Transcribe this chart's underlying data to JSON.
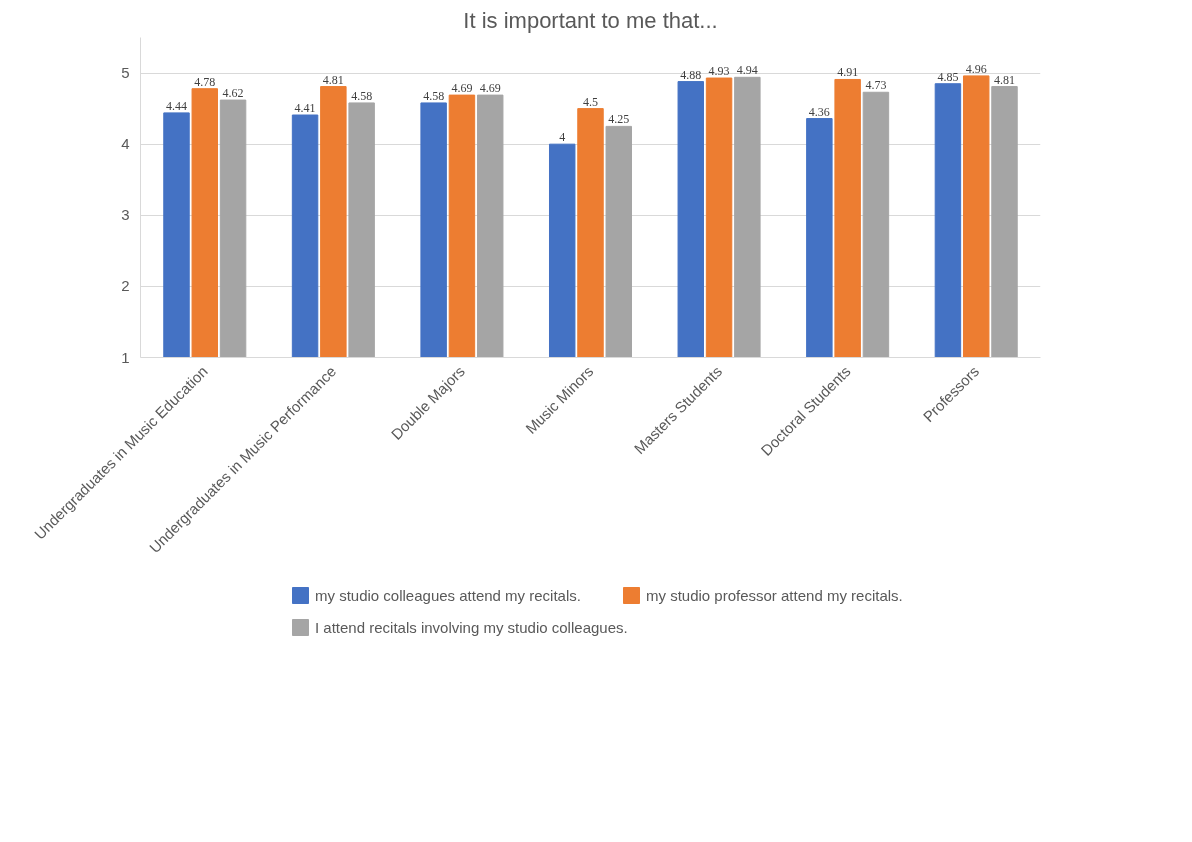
{
  "chart_data": {
    "type": "bar",
    "title": "It is important to me that...",
    "categories": [
      "Undergraduates in Music Education",
      "Undergraduates in Music Performance",
      "Double Majors",
      "Music Minors",
      "Masters Students",
      "Doctoral Students",
      "Professors"
    ],
    "series": [
      {
        "name": "my studio colleagues attend my recitals.",
        "color": "#4472c4",
        "values": [
          4.44,
          4.41,
          4.58,
          4,
          4.88,
          4.36,
          4.85
        ]
      },
      {
        "name": "my studio professor attend my recitals.",
        "color": "#ed7d31",
        "values": [
          4.78,
          4.81,
          4.69,
          4.5,
          4.93,
          4.91,
          4.96
        ]
      },
      {
        "name": "I attend recitals involving my studio colleagues.",
        "color": "#a5a5a5",
        "values": [
          4.62,
          4.58,
          4.69,
          4.25,
          4.94,
          4.73,
          4.81
        ]
      }
    ],
    "ylim": [
      1,
      5.5
    ],
    "yticks": [
      1,
      2,
      3,
      4,
      5
    ],
    "grid": "y",
    "legend": "bottom",
    "data_labels": true
  }
}
